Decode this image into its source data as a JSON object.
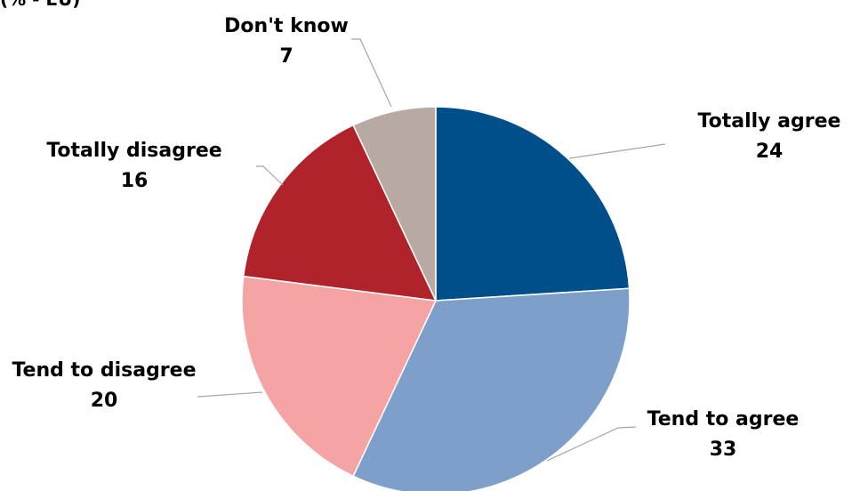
{
  "header_fragment": "(% - EU)",
  "chart_data": {
    "type": "pie",
    "title": "",
    "start_angle_deg": 0,
    "direction": "clockwise",
    "slices": [
      {
        "label": "Totally agree",
        "value": 24,
        "color": "#004f8a"
      },
      {
        "label": "Tend to agree",
        "value": 33,
        "color": "#7f9fcb"
      },
      {
        "label": "Tend to disagree",
        "value": 20,
        "color": "#f4a4a3"
      },
      {
        "label": "Totally disagree",
        "value": 16,
        "color": "#b0232b"
      },
      {
        "label": "Don't know",
        "value": 7,
        "color": "#b8a9a2"
      }
    ]
  }
}
